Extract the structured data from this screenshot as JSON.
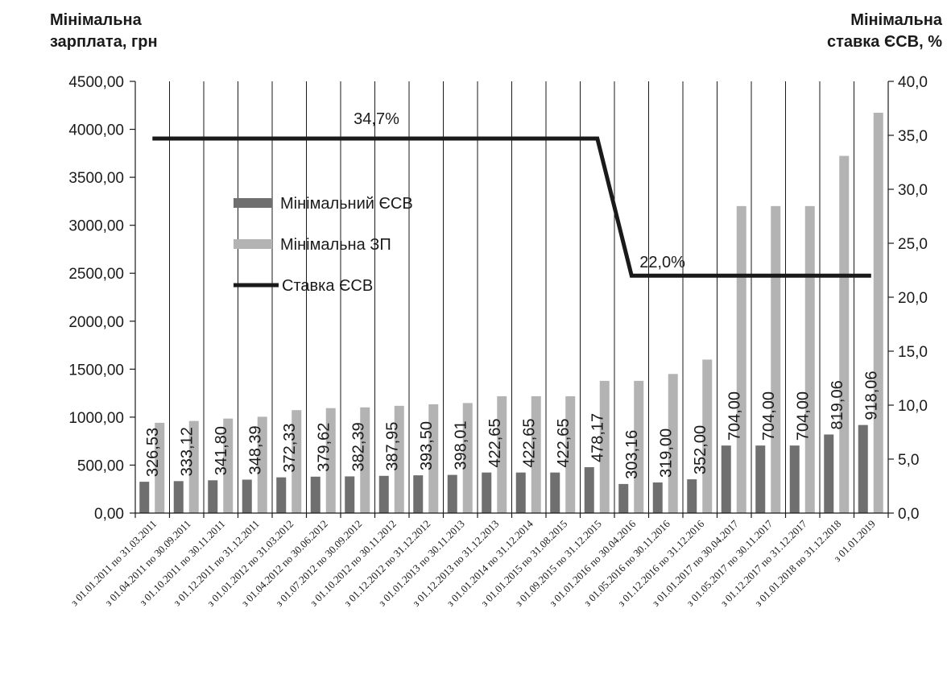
{
  "left_axis_title": [
    "Мінімальна",
    "зарплата, грн"
  ],
  "right_axis_title": [
    "Мінімальна",
    "ставка ЄСВ, %"
  ],
  "chart_data": {
    "type": "bar",
    "categories": [
      "з 01.01.2011 по 31.03.2011",
      "з 01.04.2011 по 30.09.2011",
      "з 01.10.2011 по 30.11.2011",
      "з 01.12.2011 по 31.12.2011",
      "з 01.01.2012 по 31.03.2012",
      "з 01.04.2012 по 30.06.2012",
      "з 01.07.2012 по 30.09.2012",
      "з 01.10.2012 по 30.11.2012",
      "з 01.12.2012 по 31.12.2012",
      "з 01.01.2013 по 30.11.2013",
      "з 01.12.2013 по 31.12.2013",
      "з 01.01.2014 по 31.12.2014",
      "з 01.01.2015 по 31.08.2015",
      "з 01.09.2015 по 31.12.2015",
      "з 01.01.2016 по 30.04.2016",
      "з 01.05.2016 по 30.11.2016",
      "з 01.12.2016 по 31.12.2016",
      "з 01.01.2017 по 30.04.2017",
      "з 01.05.2017 по 30.11.2017",
      "з 01.12.2017 по 31.12.2017",
      "з 01.01.2018 по 31.12.2018",
      "з 01.01.2019"
    ],
    "series": [
      {
        "name": "Мінімальний ЄСВ",
        "kind": "bar",
        "axis": "left",
        "color": "#6f6f6f",
        "values": [
          326.53,
          333.12,
          341.8,
          348.39,
          372.33,
          379.62,
          382.39,
          387.95,
          393.5,
          398.01,
          422.65,
          422.65,
          422.65,
          478.17,
          303.16,
          319.0,
          352.0,
          704.0,
          704.0,
          704.0,
          819.06,
          918.06
        ],
        "labels": [
          "326,53",
          "333,12",
          "341,80",
          "348,39",
          "372,33",
          "379,62",
          "382,39",
          "387,95",
          "393,50",
          "398,01",
          "422,65",
          "422,65",
          "422,65",
          "478,17",
          "303,16",
          "319,00",
          "352,00",
          "704,00",
          "704,00",
          "704,00",
          "819,06",
          "918,06"
        ]
      },
      {
        "name": "Мінімальна ЗП",
        "kind": "bar",
        "axis": "left",
        "color": "#b3b3b3",
        "values": [
          941,
          960,
          985,
          1004,
          1073,
          1094,
          1102,
          1118,
          1134,
          1147,
          1218,
          1218,
          1218,
          1378,
          1378,
          1450,
          1600,
          3200,
          3200,
          3200,
          3723,
          4173
        ]
      },
      {
        "name": "Ставка ЄСВ",
        "kind": "line",
        "axis": "right",
        "color": "#1a1a1a",
        "values": [
          34.7,
          34.7,
          34.7,
          34.7,
          34.7,
          34.7,
          34.7,
          34.7,
          34.7,
          34.7,
          34.7,
          34.7,
          34.7,
          34.7,
          22.0,
          22.0,
          22.0,
          22.0,
          22.0,
          22.0,
          22.0,
          22.0
        ]
      }
    ],
    "annotations": {
      "high": "34,7%",
      "low": "22,0%"
    },
    "left_axis": {
      "min": 0,
      "max": 4500,
      "step": 500,
      "tick_labels": [
        "0,00",
        "500,00",
        "1000,00",
        "1500,00",
        "2000,00",
        "2500,00",
        "3000,00",
        "3500,00",
        "4000,00",
        "4500,00"
      ]
    },
    "right_axis": {
      "min": 0,
      "max": 40,
      "step": 5,
      "tick_labels": [
        "0,0",
        "5,0",
        "10,0",
        "15,0",
        "20,0",
        "25,0",
        "30,0",
        "35,0",
        "40,0"
      ]
    },
    "grid": "vertical",
    "legend_position": "upper-left"
  }
}
